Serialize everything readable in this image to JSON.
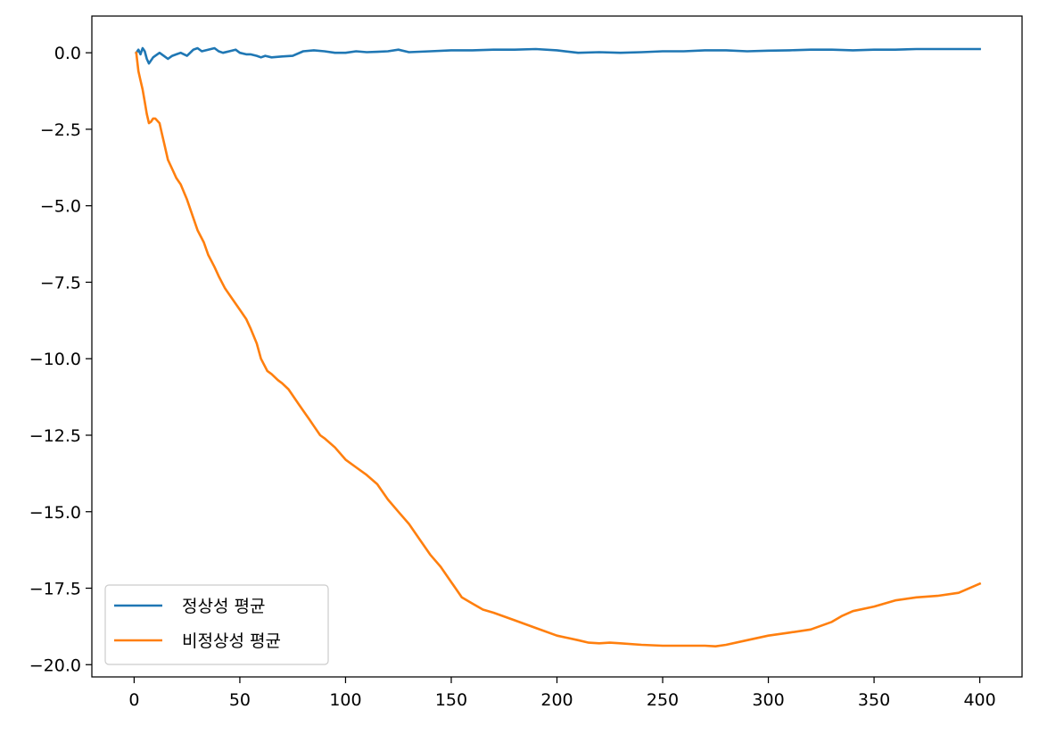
{
  "chart_data": {
    "type": "line",
    "title": "",
    "xlabel": "",
    "ylabel": "",
    "xlim": [
      -20,
      420
    ],
    "ylim": [
      -20.4,
      1.2
    ],
    "xticks": [
      0,
      50,
      100,
      150,
      200,
      250,
      300,
      350,
      400
    ],
    "xtick_labels": [
      "0",
      "50",
      "100",
      "150",
      "200",
      "250",
      "300",
      "350",
      "400"
    ],
    "yticks": [
      0,
      -2.5,
      -5,
      -7.5,
      -10,
      -12.5,
      -15,
      -17.5,
      -20
    ],
    "ytick_labels": [
      "0.0",
      "−2.5",
      "−5.0",
      "−7.5",
      "−10.0",
      "−12.5",
      "−15.0",
      "−17.5",
      "−20.0"
    ],
    "grid": false,
    "legend_position": "lower-left",
    "series": [
      {
        "name": "정상성 평균",
        "color": "#1f77b4",
        "x": [
          1,
          2,
          3,
          4,
          5,
          6,
          7,
          8,
          9,
          10,
          12,
          14,
          16,
          18,
          20,
          22,
          25,
          28,
          30,
          32,
          35,
          38,
          40,
          42,
          45,
          48,
          50,
          53,
          55,
          58,
          60,
          62,
          65,
          70,
          75,
          80,
          85,
          90,
          95,
          100,
          105,
          110,
          115,
          120,
          125,
          130,
          140,
          150,
          160,
          170,
          180,
          190,
          200,
          210,
          220,
          230,
          240,
          250,
          260,
          270,
          280,
          290,
          300,
          310,
          320,
          330,
          340,
          350,
          360,
          370,
          380,
          390,
          400
        ],
        "y": [
          0.0,
          0.1,
          -0.05,
          0.15,
          0.05,
          -0.2,
          -0.35,
          -0.25,
          -0.15,
          -0.1,
          0.0,
          -0.1,
          -0.2,
          -0.1,
          -0.05,
          0.0,
          -0.1,
          0.1,
          0.15,
          0.05,
          0.1,
          0.15,
          0.05,
          0.0,
          0.05,
          0.1,
          0.0,
          -0.05,
          -0.05,
          -0.1,
          -0.15,
          -0.1,
          -0.15,
          -0.12,
          -0.1,
          0.05,
          0.08,
          0.05,
          0.0,
          0.0,
          0.05,
          0.02,
          0.03,
          0.05,
          0.1,
          0.02,
          0.05,
          0.08,
          0.08,
          0.1,
          0.1,
          0.12,
          0.08,
          0.0,
          0.02,
          0.0,
          0.02,
          0.05,
          0.05,
          0.08,
          0.08,
          0.05,
          0.07,
          0.08,
          0.1,
          0.1,
          0.08,
          0.1,
          0.1,
          0.12,
          0.12,
          0.12,
          0.12
        ]
      },
      {
        "name": "비정상성 평균",
        "color": "#ff7f0e",
        "x": [
          1,
          2,
          3,
          4,
          5,
          6,
          7,
          8,
          9,
          10,
          12,
          13,
          14,
          16,
          18,
          20,
          22,
          25,
          28,
          30,
          33,
          35,
          38,
          40,
          43,
          45,
          48,
          50,
          53,
          55,
          58,
          60,
          63,
          65,
          68,
          70,
          73,
          75,
          78,
          80,
          83,
          85,
          88,
          90,
          95,
          100,
          105,
          110,
          115,
          120,
          125,
          130,
          135,
          140,
          145,
          150,
          155,
          160,
          165,
          170,
          180,
          190,
          200,
          210,
          215,
          220,
          225,
          230,
          240,
          250,
          260,
          270,
          275,
          280,
          290,
          300,
          310,
          320,
          330,
          335,
          340,
          350,
          360,
          370,
          380,
          390,
          400
        ],
        "y": [
          0.0,
          -0.6,
          -0.9,
          -1.2,
          -1.6,
          -2.0,
          -2.3,
          -2.25,
          -2.15,
          -2.15,
          -2.3,
          -2.6,
          -2.9,
          -3.5,
          -3.8,
          -4.1,
          -4.3,
          -4.8,
          -5.4,
          -5.8,
          -6.2,
          -6.6,
          -7.0,
          -7.3,
          -7.7,
          -7.9,
          -8.2,
          -8.4,
          -8.7,
          -9.0,
          -9.5,
          -10.0,
          -10.4,
          -10.5,
          -10.7,
          -10.8,
          -11.0,
          -11.2,
          -11.5,
          -11.7,
          -12.0,
          -12.2,
          -12.5,
          -12.6,
          -12.9,
          -13.3,
          -13.55,
          -13.8,
          -14.1,
          -14.6,
          -15.0,
          -15.4,
          -15.9,
          -16.4,
          -16.8,
          -17.3,
          -17.8,
          -18.0,
          -18.2,
          -18.3,
          -18.55,
          -18.8,
          -19.05,
          -19.2,
          -19.28,
          -19.3,
          -19.28,
          -19.3,
          -19.35,
          -19.38,
          -19.38,
          -19.38,
          -19.4,
          -19.35,
          -19.2,
          -19.05,
          -18.95,
          -18.85,
          -18.6,
          -18.4,
          -18.25,
          -18.1,
          -17.9,
          -17.8,
          -17.75,
          -17.65,
          -17.35
        ]
      }
    ]
  }
}
